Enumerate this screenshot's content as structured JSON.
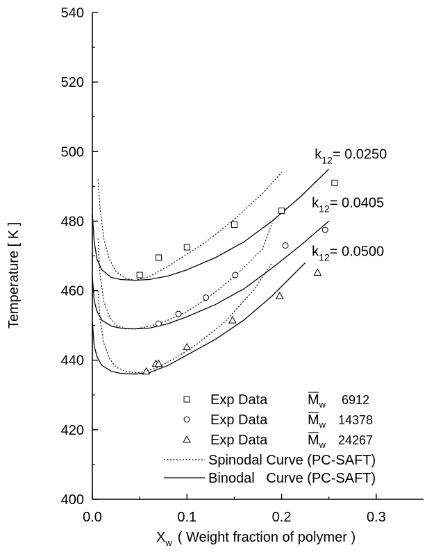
{
  "chart_data": {
    "type": "scatter",
    "title": "",
    "xlabel": "( Weight fraction of polymer )",
    "xlabel_symbol": "X",
    "xlabel_symbol_sub": "w",
    "ylabel": "Temperature  [ K ]",
    "xlim": [
      0.0,
      0.35
    ],
    "ylim": [
      400,
      540
    ],
    "x_ticks": [
      "0.0",
      "0.1",
      "0.2",
      "0.3"
    ],
    "x_tick_values": [
      0.0,
      0.1,
      0.2,
      0.3
    ],
    "y_ticks": [
      "400",
      "420",
      "440",
      "460",
      "480",
      "500",
      "520",
      "540"
    ],
    "y_tick_values": [
      400,
      420,
      440,
      460,
      480,
      500,
      520,
      540
    ],
    "grid": false,
    "legend_position": "bottom-right",
    "series": [
      {
        "name": "Exp Data",
        "mw_label": "M",
        "mw_sub": "w",
        "mw_value": "6912",
        "marker": "square",
        "x": [
          0.05,
          0.07,
          0.1,
          0.15,
          0.2,
          0.256
        ],
        "y": [
          464.5,
          469.5,
          472.5,
          479,
          483,
          491
        ]
      },
      {
        "name": "Exp Data",
        "mw_label": "M",
        "mw_sub": "w",
        "mw_value": "14378",
        "marker": "circle",
        "x": [
          0.07,
          0.091,
          0.12,
          0.151,
          0.204,
          0.246
        ],
        "y": [
          450.5,
          453.3,
          458,
          464.5,
          473,
          477.5
        ]
      },
      {
        "name": "Exp Data",
        "mw_label": "M",
        "mw_sub": "w",
        "mw_value": "24267",
        "marker": "triangle",
        "x": [
          0.057,
          0.067,
          0.07,
          0.1,
          0.148,
          0.198,
          0.238
        ],
        "y": [
          436.8,
          439,
          439,
          443.8,
          451.5,
          458.5,
          465.2
        ]
      }
    ],
    "curves": [
      {
        "name": "Spinodal Curve (PC-SAFT)",
        "k12": "0.0250",
        "style": "dotted",
        "x": [
          0.006,
          0.008,
          0.012,
          0.018,
          0.025,
          0.035,
          0.045,
          0.06,
          0.08,
          0.1,
          0.12,
          0.15,
          0.18,
          0.2
        ],
        "y": [
          492,
          484,
          475,
          469,
          465.5,
          463.5,
          463,
          464,
          467,
          470.5,
          474,
          480.5,
          488,
          494
        ]
      },
      {
        "name": "Binodal   Curve (PC-SAFT)",
        "k12": "0.0250",
        "style": "solid",
        "x": [
          0.0,
          0.002,
          0.005,
          0.01,
          0.02,
          0.03,
          0.045,
          0.06,
          0.08,
          0.1,
          0.13,
          0.16,
          0.19,
          0.22,
          0.25
        ],
        "y": [
          482,
          474,
          469,
          466,
          463.8,
          463.2,
          463,
          463.2,
          464.2,
          466,
          469.5,
          474,
          480,
          487,
          495
        ]
      },
      {
        "name": "Spinodal Curve (PC-SAFT)",
        "k12": "0.0405",
        "style": "dotted",
        "x": [
          0.006,
          0.008,
          0.012,
          0.018,
          0.025,
          0.035,
          0.045,
          0.06,
          0.08,
          0.1,
          0.12,
          0.15,
          0.18,
          0.19
        ],
        "y": [
          475,
          465,
          457,
          452.5,
          450,
          449,
          449,
          449.7,
          451.5,
          454,
          457.5,
          464,
          472,
          479.5
        ]
      },
      {
        "name": "Binodal   Curve (PC-SAFT)",
        "k12": "0.0405",
        "style": "solid",
        "x": [
          0.0,
          0.002,
          0.005,
          0.01,
          0.02,
          0.03,
          0.045,
          0.06,
          0.08,
          0.1,
          0.13,
          0.16,
          0.19,
          0.22,
          0.25
        ],
        "y": [
          464,
          457,
          454,
          451.5,
          449.8,
          449.2,
          449,
          449.2,
          450.5,
          452.5,
          456,
          460.5,
          466.5,
          473,
          480
        ]
      },
      {
        "name": "Spinodal Curve (PC-SAFT)",
        "k12": "0.0500",
        "style": "dotted",
        "x": [
          0.006,
          0.008,
          0.012,
          0.018,
          0.025,
          0.035,
          0.045,
          0.055,
          0.07,
          0.09,
          0.11,
          0.14,
          0.17,
          0.19
        ],
        "y": [
          460,
          452,
          445,
          440.5,
          438,
          436.8,
          436.4,
          436.6,
          438,
          441,
          444.5,
          451,
          460,
          468
        ]
      },
      {
        "name": "Binodal   Curve (PC-SAFT)",
        "k12": "0.0500",
        "style": "solid",
        "x": [
          0.0,
          0.002,
          0.005,
          0.01,
          0.02,
          0.03,
          0.045,
          0.06,
          0.08,
          0.1,
          0.13,
          0.16,
          0.19,
          0.225
        ],
        "y": [
          451,
          444,
          441,
          438.5,
          436.8,
          436.2,
          436,
          436.4,
          438.5,
          441.5,
          446,
          451.5,
          458.5,
          468
        ]
      }
    ],
    "annotations": [
      {
        "text_main": "k",
        "text_sub": "12",
        "text_value": "= 0.0250",
        "x": 0.235,
        "y": 498
      },
      {
        "text_main": "k",
        "text_sub": "12",
        "text_value": "= 0.0405",
        "x": 0.232,
        "y": 484
      },
      {
        "text_main": "k",
        "text_sub": "12",
        "text_value": "= 0.0500",
        "x": 0.232,
        "y": 470
      }
    ]
  }
}
